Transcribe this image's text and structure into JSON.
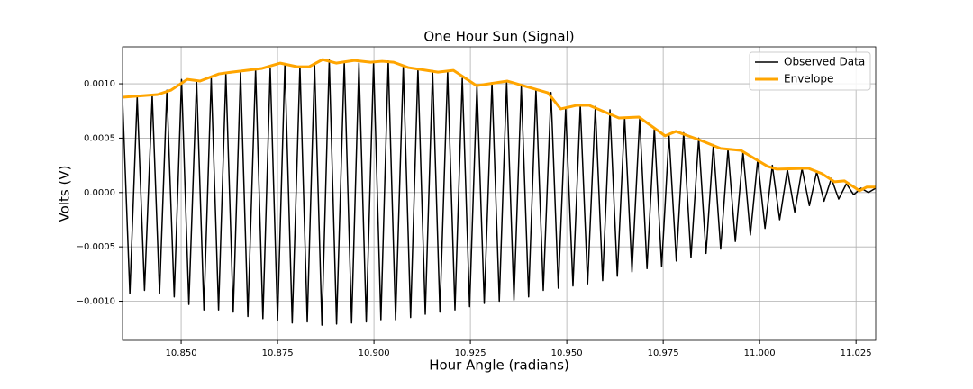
{
  "chart_data": {
    "type": "line",
    "title": "One Hour Sun (Signal)",
    "xlabel": "Hour Angle (radians)",
    "ylabel": "Volts (V)",
    "grid": true,
    "legend": "upper right",
    "xlim": [
      10.8348,
      11.0301
    ],
    "ylim": [
      -0.00136,
      0.00134
    ],
    "xticks": [
      {
        "value": 10.85,
        "label": "10.850"
      },
      {
        "value": 10.875,
        "label": "10.875"
      },
      {
        "value": 10.9,
        "label": "10.900"
      },
      {
        "value": 10.925,
        "label": "10.925"
      },
      {
        "value": 10.95,
        "label": "10.950"
      },
      {
        "value": 10.975,
        "label": "10.975"
      },
      {
        "value": 11.0,
        "label": "11.000"
      },
      {
        "value": 11.025,
        "label": "11.025"
      }
    ],
    "yticks": [
      {
        "value": -0.001,
        "label": "−0.0010"
      },
      {
        "value": -0.0005,
        "label": "−0.0005"
      },
      {
        "value": 0,
        "label": "0.0000"
      },
      {
        "value": 0.0005,
        "label": "0.0005"
      },
      {
        "value": 0.001,
        "label": "0.0010"
      }
    ],
    "series": [
      {
        "name": "Observed Data",
        "color": "#000000",
        "width": 1.5,
        "x": [
          10.8348,
          10.8367,
          10.8386,
          10.8405,
          10.8425,
          10.8444,
          10.8463,
          10.8482,
          10.8501,
          10.852,
          10.854,
          10.8559,
          10.8578,
          10.8597,
          10.8616,
          10.8635,
          10.8654,
          10.8673,
          10.8693,
          10.8712,
          10.8731,
          10.875,
          10.8769,
          10.8788,
          10.8808,
          10.8827,
          10.8846,
          10.8865,
          10.8884,
          10.8903,
          10.8923,
          10.8942,
          10.8961,
          10.898,
          10.8999,
          10.9018,
          10.9037,
          10.9056,
          10.9076,
          10.9095,
          10.9114,
          10.9133,
          10.9152,
          10.9171,
          10.9191,
          10.921,
          10.9229,
          10.9248,
          10.9267,
          10.9286,
          10.9306,
          10.9325,
          10.9344,
          10.9363,
          10.9382,
          10.9401,
          10.942,
          10.9439,
          10.9459,
          10.9478,
          10.9497,
          10.9516,
          10.9535,
          10.9554,
          10.9574,
          10.9593,
          10.9612,
          10.9631,
          10.965,
          10.9669,
          10.9689,
          10.9708,
          10.9727,
          10.9746,
          10.9765,
          10.9784,
          10.9803,
          10.9822,
          10.9842,
          10.9861,
          10.988,
          10.9899,
          10.9918,
          10.9937,
          10.9957,
          10.9976,
          10.9995,
          11.0014,
          11.0033,
          11.0052,
          11.0072,
          11.0091,
          11.011,
          11.0129,
          11.0148,
          11.0167,
          11.0186,
          11.0205,
          11.0225,
          11.0244,
          11.0263,
          11.0282,
          11.0301
        ],
        "values": [
          0.00086,
          -0.00093,
          0.00088,
          -0.0009,
          0.00089,
          -0.00093,
          0.00094,
          -0.00096,
          0.00104,
          -0.00103,
          0.00103,
          -0.00108,
          0.00105,
          -0.00108,
          0.00109,
          -0.0011,
          0.00111,
          -0.00114,
          0.00113,
          -0.00116,
          0.00114,
          -0.00118,
          0.00118,
          -0.0012,
          0.00116,
          -0.00119,
          0.00117,
          -0.00122,
          0.00122,
          -0.00121,
          0.0012,
          -0.0012,
          0.00119,
          -0.00119,
          0.0012,
          -0.00117,
          0.00121,
          -0.00117,
          0.00116,
          -0.00115,
          0.00114,
          -0.00112,
          0.00112,
          -0.0011,
          0.00111,
          -0.00108,
          0.00105,
          -0.00105,
          0.00099,
          -0.00102,
          0.00101,
          -0.001,
          0.00102,
          -0.00099,
          0.00098,
          -0.00096,
          0.00095,
          -0.0009,
          0.00092,
          -0.00088,
          0.00077,
          -0.00086,
          0.0008,
          -0.00084,
          0.00079,
          -0.00081,
          0.00076,
          -0.00077,
          0.00069,
          -0.00073,
          0.00068,
          -0.0007,
          0.00059,
          -0.00068,
          0.00053,
          -0.00063,
          0.00055,
          -0.0006,
          0.0005,
          -0.00056,
          0.00044,
          -0.00052,
          0.0004,
          -0.00045,
          0.00037,
          -0.00039,
          0.0003,
          -0.00033,
          0.00025,
          -0.00025,
          0.00021,
          -0.00018,
          0.00022,
          -0.00012,
          0.00019,
          -8e-05,
          0.00013,
          -6e-05,
          8e-05,
          -2e-05,
          4e-05,
          0.0,
          4e-05
        ]
      },
      {
        "name": "Envelope",
        "color": "#ffa500",
        "width": 3,
        "x": [
          10.8348,
          10.8439,
          10.8474,
          10.8516,
          10.8549,
          10.8598,
          10.8631,
          10.8708,
          10.8757,
          10.8801,
          10.8832,
          10.8867,
          10.8902,
          10.8949,
          10.8991,
          10.9021,
          10.9051,
          10.9089,
          10.9121,
          10.9166,
          10.9206,
          10.9266,
          10.9346,
          10.9451,
          10.9484,
          10.9526,
          10.9558,
          10.9635,
          10.9687,
          10.9755,
          10.9783,
          10.9841,
          10.9899,
          10.9951,
          11.0021,
          11.0044,
          11.0126,
          11.0161,
          11.0194,
          11.022,
          11.0259,
          11.0278,
          11.0301
        ],
        "values": [
          0.000876,
          0.000901,
          0.000942,
          0.001041,
          0.001025,
          0.001091,
          0.001107,
          0.00114,
          0.00119,
          0.001157,
          0.001157,
          0.001223,
          0.00119,
          0.001215,
          0.001198,
          0.001207,
          0.001198,
          0.001149,
          0.001132,
          0.001107,
          0.001124,
          0.000983,
          0.001025,
          0.000917,
          0.000769,
          0.000802,
          0.000802,
          0.000686,
          0.000694,
          0.000521,
          0.000562,
          0.000488,
          0.000405,
          0.000388,
          0.00024,
          0.000215,
          0.000223,
          0.000174,
          9.9e-05,
          0.000107,
          1.7e-05,
          5e-05,
          5e-05
        ]
      }
    ]
  }
}
